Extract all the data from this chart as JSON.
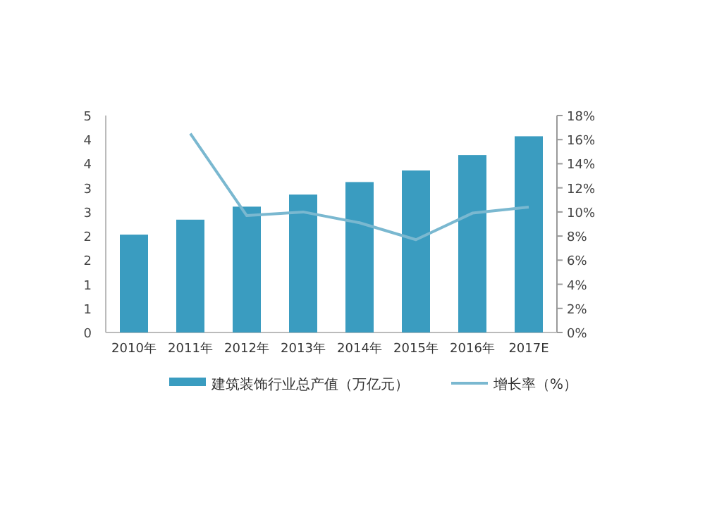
{
  "chart_data": {
    "type": "bar",
    "categories": [
      "2010年",
      "2011年",
      "2012年",
      "2013年",
      "2014年",
      "2015年",
      "2016年",
      "2017E"
    ],
    "series": [
      {
        "name": "建筑装饰行业总产值（万亿元）",
        "color": "#3a9cc0",
        "values": [
          2.03,
          2.34,
          2.61,
          2.86,
          3.12,
          3.36,
          3.68,
          4.07
        ]
      },
      {
        "name": "增长率（%）",
        "type": "line",
        "axis": "y2",
        "color": "#7ab8d0",
        "values": [
          null,
          16.5,
          9.7,
          10.0,
          9.1,
          7.7,
          9.9,
          10.4
        ]
      }
    ],
    "ylim": [
      0,
      4.5
    ],
    "yticks": [
      0,
      {
        "value": 0.5,
        "label": "1"
      },
      1,
      {
        "value": 1.5,
        "label": "2"
      },
      2,
      {
        "value": 2.5,
        "label": "3"
      },
      3,
      {
        "value": 3.5,
        "label": "4"
      },
      4,
      {
        "value": 4.5,
        "label": "5"
      }
    ],
    "y2lim": [
      0,
      18
    ],
    "y2ticks": [
      {
        "value": 0,
        "label": "0%"
      },
      {
        "value": 2,
        "label": "2%"
      },
      {
        "value": 4,
        "label": "4%"
      },
      {
        "value": 6,
        "label": "6%"
      },
      {
        "value": 8,
        "label": "8%"
      },
      {
        "value": 10,
        "label": "10%"
      },
      {
        "value": 12,
        "label": "12%"
      },
      {
        "value": 14,
        "label": "14%"
      },
      {
        "value": 16,
        "label": "16%"
      },
      {
        "value": 18,
        "label": "18%"
      }
    ],
    "legend": "bottom",
    "grid": false
  }
}
